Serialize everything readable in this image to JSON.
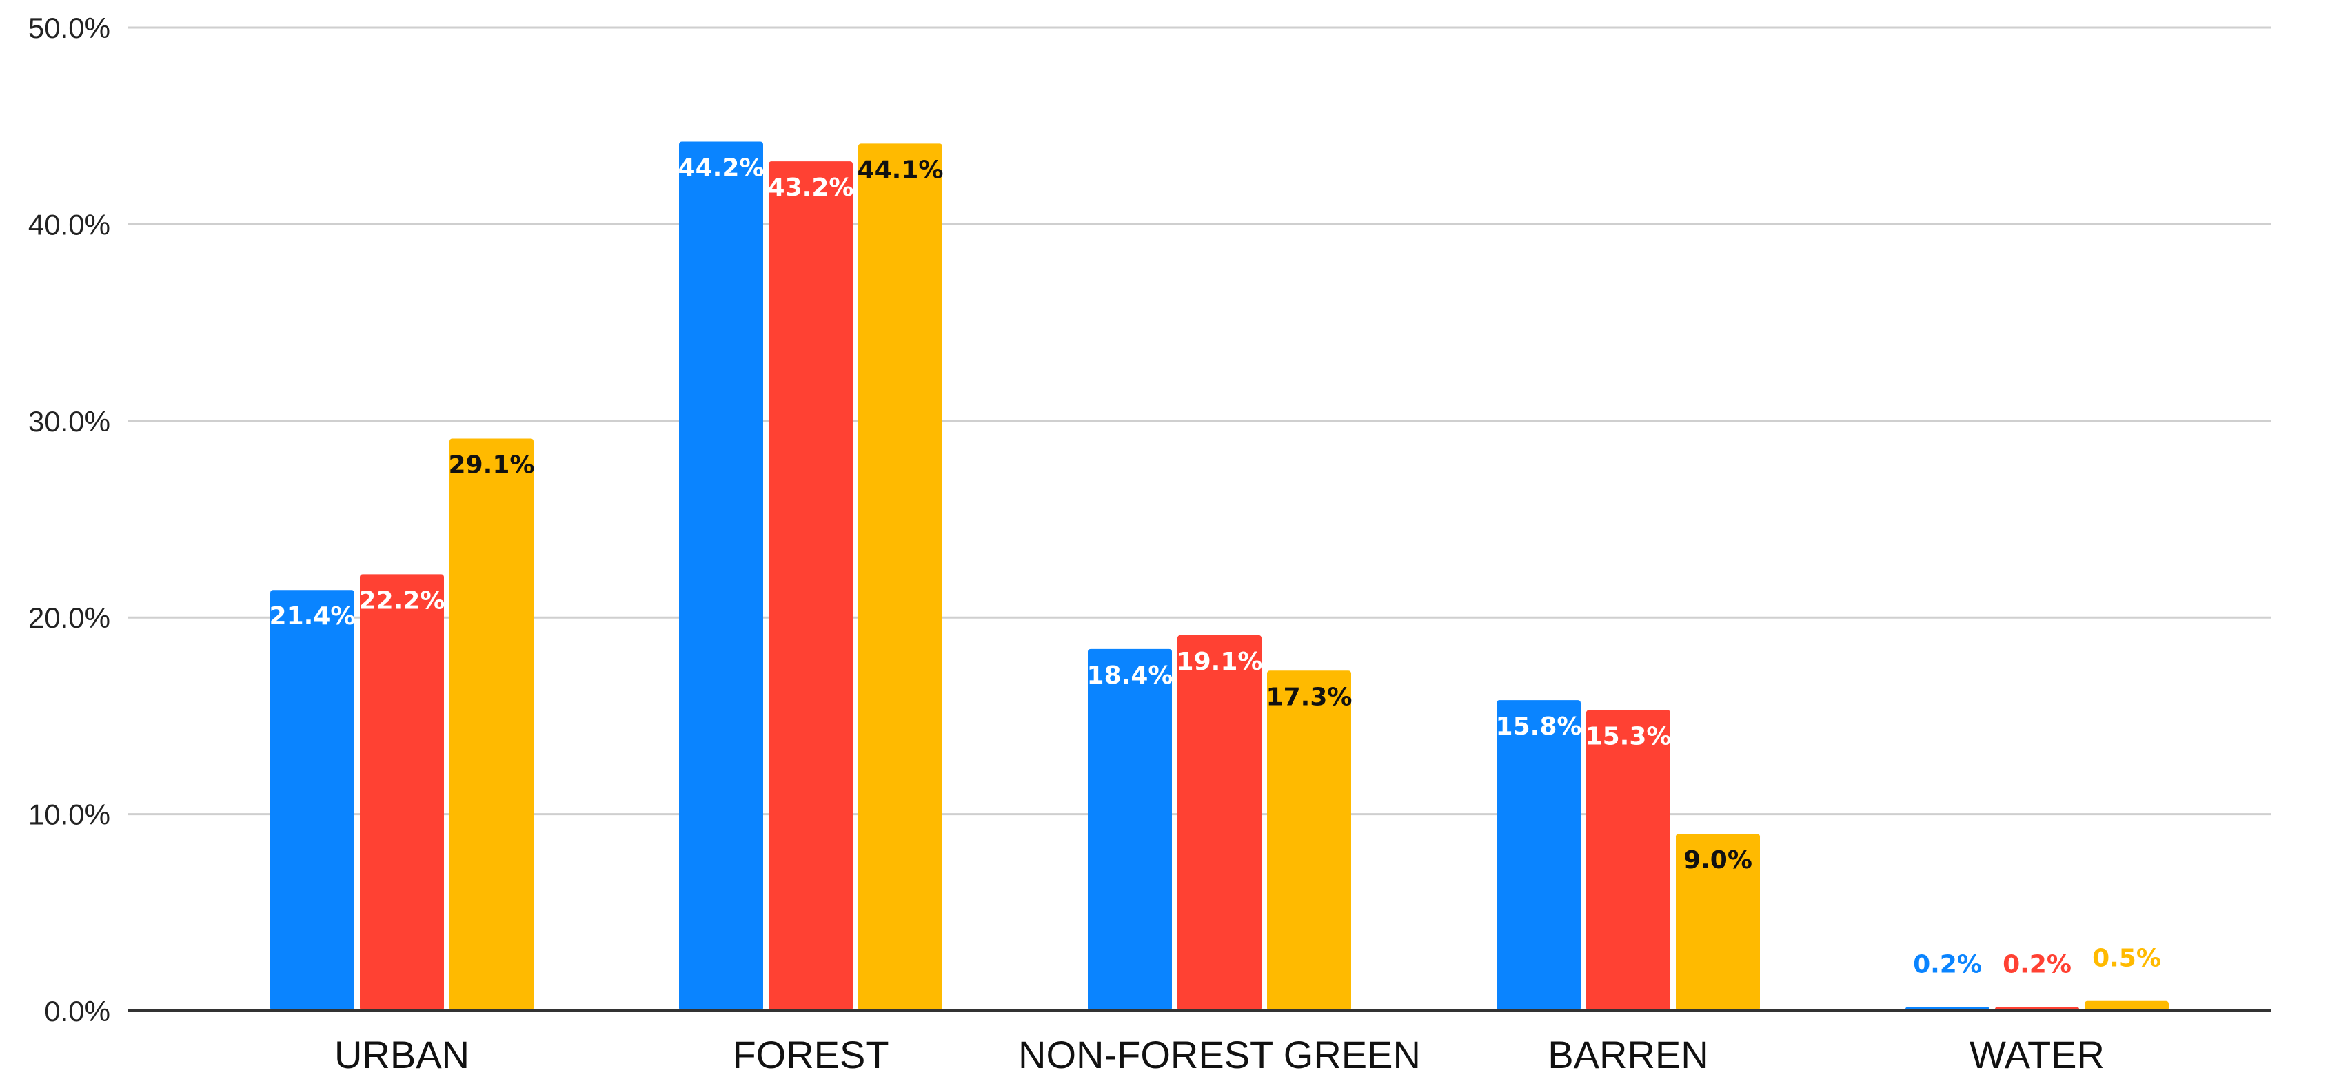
{
  "chart_data": {
    "type": "bar",
    "title": "",
    "xlabel": "",
    "ylabel": "",
    "ylim": [
      0,
      50
    ],
    "yticks": [
      0,
      10,
      20,
      30,
      40,
      50
    ],
    "ytick_labels": [
      "0.0%",
      "10.0%",
      "20.0%",
      "30.0%",
      "40.0%",
      "50.0%"
    ],
    "grid": true,
    "legend": "none",
    "categories": [
      "URBAN",
      "FOREST",
      "NON-FOREST GREEN",
      "BARREN",
      "WATER"
    ],
    "series": [
      {
        "color": "#0A84FF",
        "label_color": "#FFFFFF",
        "outside_label_color": "#0A84FF",
        "values": [
          21.4,
          44.2,
          18.4,
          15.8,
          0.2
        ],
        "labels": [
          "21.4%",
          "44.2%",
          "18.4%",
          "15.8%",
          "0.2%"
        ]
      },
      {
        "color": "#FF4133",
        "label_color": "#FFFFFF",
        "outside_label_color": "#FF4133",
        "values": [
          22.2,
          43.2,
          19.1,
          15.3,
          0.2
        ],
        "labels": [
          "22.2%",
          "43.2%",
          "19.1%",
          "15.3%",
          "0.2%"
        ]
      },
      {
        "color": "#FFBA00",
        "label_color": "#111111",
        "outside_label_color": "#FFBA00",
        "values": [
          29.1,
          44.1,
          17.3,
          9.0,
          0.5
        ],
        "labels": [
          "29.1%",
          "44.1%",
          "17.3%",
          "9.0%",
          "0.5%"
        ]
      }
    ]
  }
}
